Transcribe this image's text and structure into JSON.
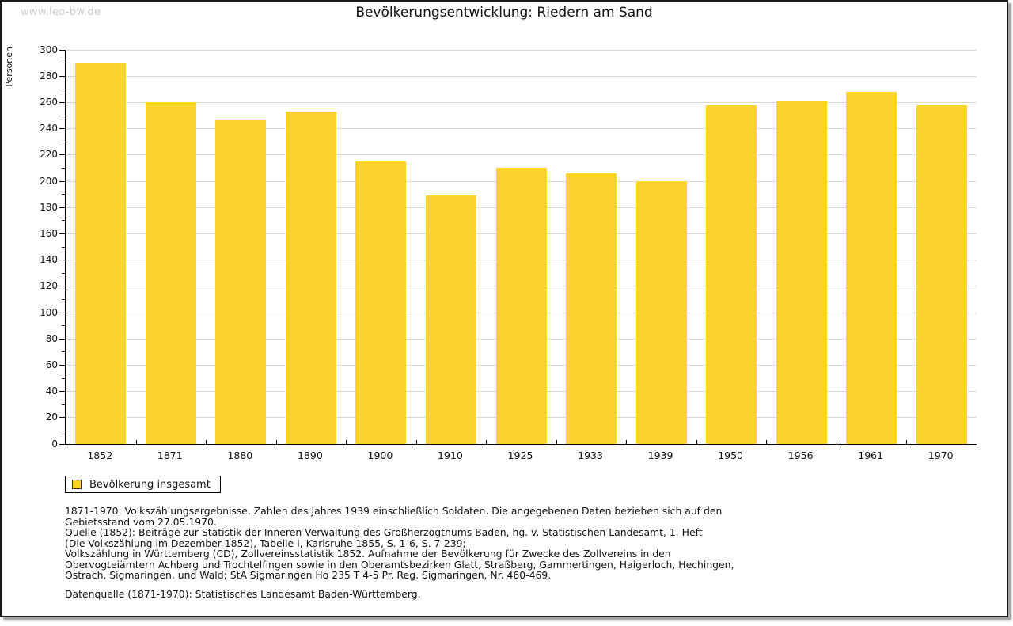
{
  "watermark": "www.leo-bw.de",
  "title": "Bevölkerungsentwicklung: Riedern am Sand",
  "chart_data": {
    "type": "bar",
    "title": "Bevölkerungsentwicklung: Riedern am Sand",
    "xlabel": "",
    "ylabel": "Personen",
    "ylim": [
      0,
      300
    ],
    "y_major_step": 20,
    "y_minor_step": 10,
    "grid": true,
    "categories": [
      "1852",
      "1871",
      "1880",
      "1890",
      "1900",
      "1910",
      "1925",
      "1933",
      "1939",
      "1950",
      "1956",
      "1961",
      "1970"
    ],
    "values": [
      290,
      260,
      247,
      253,
      215,
      189,
      210,
      206,
      200,
      258,
      261,
      268,
      258
    ],
    "legend": {
      "position": "bottom-left",
      "entries": [
        {
          "label": "Bevölkerung insgesamt",
          "color": "#fcd32d"
        }
      ]
    }
  },
  "colors": {
    "bar": "#fcd32d",
    "grid": "#d9d9d9",
    "axis": "#000000",
    "watermark": "#cccccc"
  },
  "footnotes": {
    "lines": [
      "1871-1970: Volkszählungsergebnisse. Zahlen des Jahres 1939 einschließlich Soldaten. Die angegebenen Daten beziehen sich auf den",
      "Gebietsstand vom 27.05.1970.",
      "Quelle (1852): Beiträge zur Statistik der Inneren Verwaltung des Großherzogthums Baden, hg. v. Statistischen Landesamt, 1. Heft",
      "(Die Volkszählung im Dezember 1852), Tabelle I, Karlsruhe 1855, S. 1-6, S. 7-239;",
      "Volkszählung in Württemberg (CD), Zollvereinsstatistik 1852. Aufnahme der Bevölkerung für Zwecke des Zollvereins in den",
      "Obervogteiämtern Achberg und Trochtelfingen sowie in den Oberamtsbezirken Glatt, Straßberg, Gammertingen, Haigerloch, Hechingen,",
      "Ostrach, Sigmaringen, und Wald; StA Sigmaringen Ho 235 T 4-5 Pr. Reg. Sigmaringen, Nr. 460-469."
    ],
    "source": "Datenquelle (1871-1970): Statistisches Landesamt Baden-Württemberg."
  }
}
